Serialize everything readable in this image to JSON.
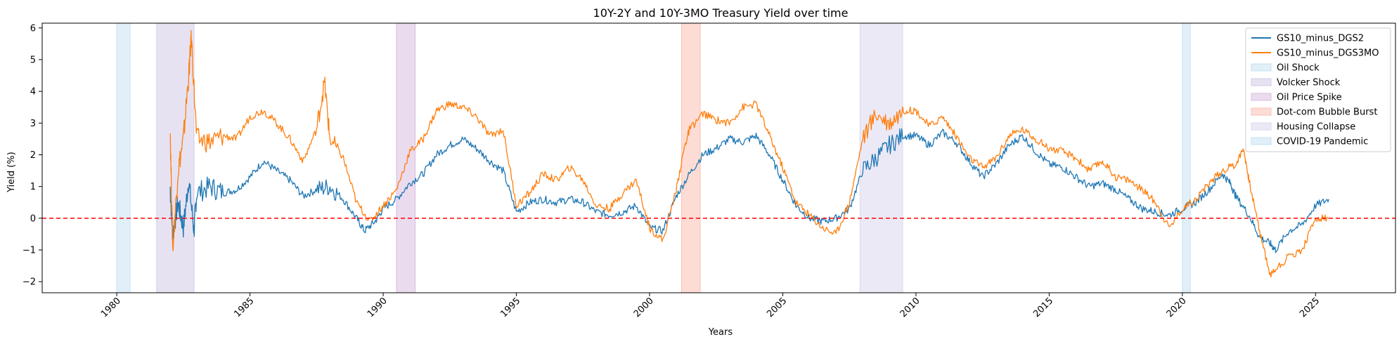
{
  "chart_data": {
    "type": "line",
    "title": "10Y-2Y and 10Y-3MO Treasury Yield over time",
    "xlabel": "Years",
    "ylabel": "Yield (%)",
    "xlim": [
      1977.2,
      2028.0
    ],
    "ylim": [
      -2.35,
      6.15
    ],
    "x_ticks": [
      1980,
      1985,
      1990,
      1995,
      2000,
      2005,
      2010,
      2015,
      2020,
      2025
    ],
    "y_ticks": [
      -2,
      -1,
      0,
      1,
      2,
      3,
      4,
      5,
      6
    ],
    "grid": false,
    "legend_position": "top-right",
    "reference_line": {
      "y": 0,
      "color": "#ff0000",
      "style": "dashed"
    },
    "series": [
      {
        "name": "GS10_minus_DGS2",
        "color": "#1f77b4",
        "points": [
          [
            1982.0,
            1.0
          ],
          [
            1982.1,
            -0.5
          ],
          [
            1982.3,
            0.5
          ],
          [
            1982.5,
            -0.3
          ],
          [
            1982.7,
            1.2
          ],
          [
            1982.9,
            -0.4
          ],
          [
            1983.0,
            0.8
          ],
          [
            1983.5,
            1.0
          ],
          [
            1984.0,
            0.8
          ],
          [
            1984.5,
            0.9
          ],
          [
            1985.0,
            1.3
          ],
          [
            1985.5,
            1.8
          ],
          [
            1986.0,
            1.5
          ],
          [
            1986.5,
            1.2
          ],
          [
            1987.0,
            0.7
          ],
          [
            1987.5,
            0.9
          ],
          [
            1988.0,
            1.0
          ],
          [
            1988.5,
            0.6
          ],
          [
            1989.0,
            0.0
          ],
          [
            1989.3,
            -0.4
          ],
          [
            1989.7,
            -0.1
          ],
          [
            1990.0,
            0.3
          ],
          [
            1990.5,
            0.6
          ],
          [
            1991.0,
            1.1
          ],
          [
            1991.5,
            1.4
          ],
          [
            1992.0,
            2.0
          ],
          [
            1992.5,
            2.3
          ],
          [
            1993.0,
            2.5
          ],
          [
            1993.5,
            2.2
          ],
          [
            1994.0,
            1.8
          ],
          [
            1994.5,
            1.5
          ],
          [
            1995.0,
            0.2
          ],
          [
            1995.5,
            0.5
          ],
          [
            1996.0,
            0.6
          ],
          [
            1996.5,
            0.5
          ],
          [
            1997.0,
            0.6
          ],
          [
            1997.5,
            0.5
          ],
          [
            1998.0,
            0.2
          ],
          [
            1998.5,
            0.1
          ],
          [
            1999.0,
            0.2
          ],
          [
            1999.5,
            0.4
          ],
          [
            2000.0,
            -0.3
          ],
          [
            2000.5,
            -0.4
          ],
          [
            2001.0,
            0.7
          ],
          [
            2001.5,
            1.4
          ],
          [
            2002.0,
            2.0
          ],
          [
            2002.5,
            2.2
          ],
          [
            2003.0,
            2.5
          ],
          [
            2003.5,
            2.4
          ],
          [
            2004.0,
            2.6
          ],
          [
            2004.5,
            2.0
          ],
          [
            2005.0,
            1.2
          ],
          [
            2005.5,
            0.4
          ],
          [
            2006.0,
            0.0
          ],
          [
            2006.5,
            -0.1
          ],
          [
            2007.0,
            0.0
          ],
          [
            2007.5,
            0.3
          ],
          [
            2008.0,
            1.5
          ],
          [
            2008.5,
            1.9
          ],
          [
            2009.0,
            2.3
          ],
          [
            2009.5,
            2.6
          ],
          [
            2010.0,
            2.6
          ],
          [
            2010.5,
            2.3
          ],
          [
            2011.0,
            2.7
          ],
          [
            2011.5,
            2.4
          ],
          [
            2012.0,
            1.8
          ],
          [
            2012.5,
            1.3
          ],
          [
            2013.0,
            1.7
          ],
          [
            2013.5,
            2.3
          ],
          [
            2014.0,
            2.6
          ],
          [
            2014.5,
            2.1
          ],
          [
            2015.0,
            1.7
          ],
          [
            2015.5,
            1.6
          ],
          [
            2016.0,
            1.3
          ],
          [
            2016.5,
            1.0
          ],
          [
            2017.0,
            1.1
          ],
          [
            2017.5,
            0.9
          ],
          [
            2018.0,
            0.6
          ],
          [
            2018.5,
            0.3
          ],
          [
            2019.0,
            0.2
          ],
          [
            2019.5,
            0.1
          ],
          [
            2020.0,
            0.3
          ],
          [
            2020.5,
            0.5
          ],
          [
            2021.0,
            0.9
          ],
          [
            2021.5,
            1.4
          ],
          [
            2021.8,
            1.1
          ],
          [
            2022.0,
            0.7
          ],
          [
            2022.5,
            0.1
          ],
          [
            2022.9,
            -0.6
          ],
          [
            2023.3,
            -0.8
          ],
          [
            2023.5,
            -1.0
          ],
          [
            2024.0,
            -0.4
          ],
          [
            2024.5,
            -0.2
          ],
          [
            2025.0,
            0.4
          ],
          [
            2025.5,
            0.6
          ]
        ]
      },
      {
        "name": "GS10_minus_DGS3MO",
        "color": "#ff7f0e",
        "points": [
          [
            1982.0,
            3.0
          ],
          [
            1982.1,
            -1.0
          ],
          [
            1982.3,
            1.5
          ],
          [
            1982.5,
            2.5
          ],
          [
            1982.7,
            4.5
          ],
          [
            1982.8,
            5.7
          ],
          [
            1983.0,
            2.5
          ],
          [
            1983.5,
            2.4
          ],
          [
            1984.0,
            2.6
          ],
          [
            1984.5,
            2.5
          ],
          [
            1985.0,
            3.2
          ],
          [
            1985.5,
            3.4
          ],
          [
            1986.0,
            3.0
          ],
          [
            1986.5,
            2.5
          ],
          [
            1987.0,
            1.8
          ],
          [
            1987.5,
            2.8
          ],
          [
            1987.8,
            4.3
          ],
          [
            1988.0,
            2.5
          ],
          [
            1988.5,
            1.9
          ],
          [
            1989.0,
            0.5
          ],
          [
            1989.5,
            -0.1
          ],
          [
            1990.0,
            0.4
          ],
          [
            1990.5,
            0.9
          ],
          [
            1991.0,
            2.1
          ],
          [
            1991.5,
            2.5
          ],
          [
            1992.0,
            3.4
          ],
          [
            1992.5,
            3.6
          ],
          [
            1993.0,
            3.5
          ],
          [
            1993.5,
            3.2
          ],
          [
            1994.0,
            2.6
          ],
          [
            1994.5,
            2.8
          ],
          [
            1995.0,
            0.4
          ],
          [
            1995.5,
            0.8
          ],
          [
            1996.0,
            1.4
          ],
          [
            1996.5,
            1.2
          ],
          [
            1997.0,
            1.6
          ],
          [
            1997.5,
            1.2
          ],
          [
            1998.0,
            0.4
          ],
          [
            1998.5,
            0.3
          ],
          [
            1999.0,
            0.8
          ],
          [
            1999.5,
            1.2
          ],
          [
            2000.0,
            -0.3
          ],
          [
            2000.5,
            -0.7
          ],
          [
            2001.0,
            0.9
          ],
          [
            2001.3,
            2.2
          ],
          [
            2001.5,
            2.8
          ],
          [
            2002.0,
            3.3
          ],
          [
            2002.5,
            3.1
          ],
          [
            2003.0,
            3.0
          ],
          [
            2003.5,
            3.5
          ],
          [
            2004.0,
            3.6
          ],
          [
            2004.5,
            2.6
          ],
          [
            2005.0,
            1.6
          ],
          [
            2005.5,
            0.5
          ],
          [
            2006.0,
            0.1
          ],
          [
            2006.5,
            -0.3
          ],
          [
            2007.0,
            -0.5
          ],
          [
            2007.5,
            0.5
          ],
          [
            2008.0,
            2.5
          ],
          [
            2008.5,
            3.3
          ],
          [
            2009.0,
            3.0
          ],
          [
            2009.5,
            3.4
          ],
          [
            2010.0,
            3.4
          ],
          [
            2010.5,
            2.9
          ],
          [
            2011.0,
            3.2
          ],
          [
            2011.5,
            2.6
          ],
          [
            2012.0,
            1.9
          ],
          [
            2012.5,
            1.6
          ],
          [
            2013.0,
            1.9
          ],
          [
            2013.5,
            2.6
          ],
          [
            2014.0,
            2.8
          ],
          [
            2014.5,
            2.5
          ],
          [
            2015.0,
            2.2
          ],
          [
            2015.5,
            2.1
          ],
          [
            2016.0,
            1.9
          ],
          [
            2016.5,
            1.5
          ],
          [
            2017.0,
            1.8
          ],
          [
            2017.5,
            1.3
          ],
          [
            2018.0,
            1.2
          ],
          [
            2018.5,
            0.9
          ],
          [
            2019.0,
            0.5
          ],
          [
            2019.5,
            -0.3
          ],
          [
            2020.0,
            0.3
          ],
          [
            2020.5,
            0.6
          ],
          [
            2021.0,
            1.1
          ],
          [
            2021.5,
            1.5
          ],
          [
            2022.0,
            1.7
          ],
          [
            2022.3,
            2.2
          ],
          [
            2022.5,
            1.2
          ],
          [
            2022.9,
            -0.4
          ],
          [
            2023.3,
            -1.8
          ],
          [
            2023.5,
            -1.6
          ],
          [
            2024.0,
            -1.2
          ],
          [
            2024.5,
            -1.0
          ],
          [
            2025.0,
            0.0
          ],
          [
            2025.5,
            0.0
          ]
        ]
      }
    ],
    "shaded_periods": [
      {
        "name": "Oil Shock",
        "start": 1980.0,
        "end": 1980.5,
        "color": "#c6e2f2"
      },
      {
        "name": "Volcker Shock",
        "start": 1981.5,
        "end": 1982.9,
        "color": "#d4cbe8"
      },
      {
        "name": "Oil Price Spike",
        "start": 1990.5,
        "end": 1991.2,
        "color": "#d9bde0"
      },
      {
        "name": "Dot-com Bubble Burst",
        "start": 2001.2,
        "end": 2001.9,
        "color": "#fbc0b3"
      },
      {
        "name": "Housing Collapse",
        "start": 2007.9,
        "end": 2009.5,
        "color": "#ddd7ee"
      },
      {
        "name": "COVID-19 Pandemic",
        "start": 2020.0,
        "end": 2020.3,
        "color": "#c6e2f2"
      }
    ]
  }
}
